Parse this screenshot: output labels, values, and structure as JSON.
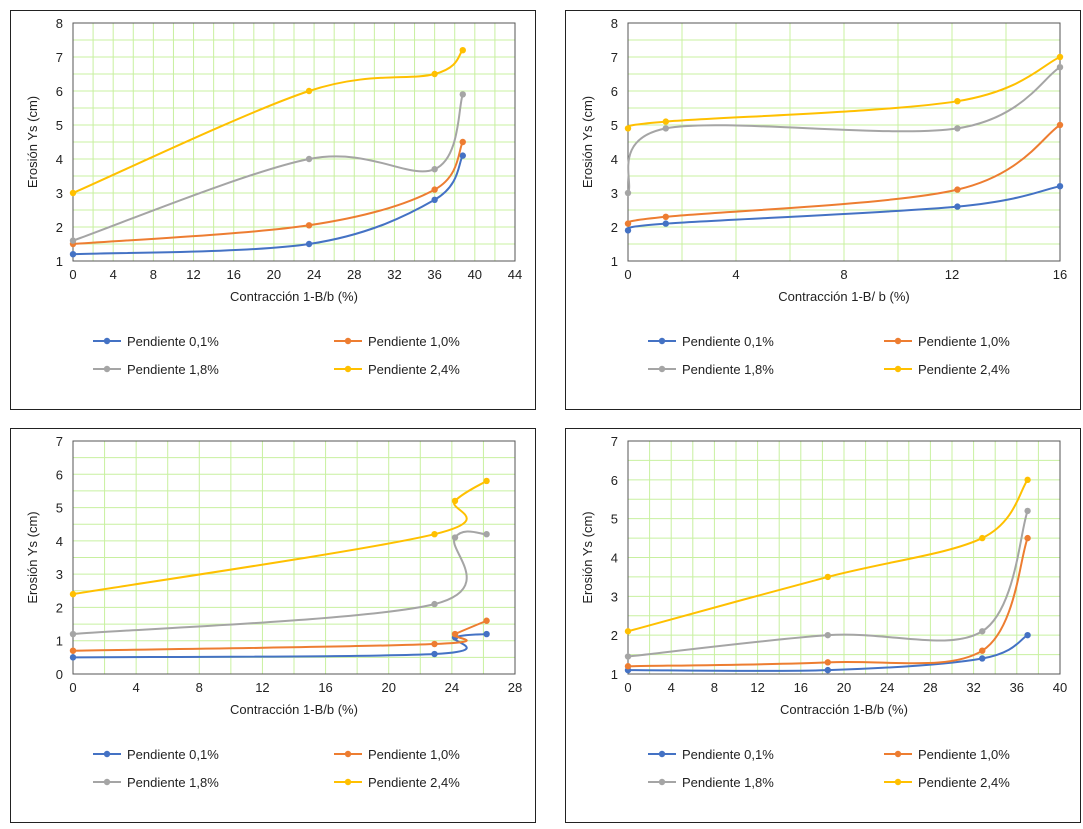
{
  "chart_data": [
    {
      "type": "line",
      "title": "",
      "xlabel": "Contracción 1-B/b (%)",
      "ylabel": "Erosión Ys (cm)",
      "xlim": [
        0,
        44
      ],
      "ylim": [
        1,
        8
      ],
      "xticks": [
        0,
        4,
        8,
        12,
        16,
        20,
        24,
        28,
        32,
        36,
        40,
        44
      ],
      "yticks": [
        1,
        2,
        3,
        4,
        5,
        6,
        7,
        8
      ],
      "grid": true,
      "legend": "bottom",
      "series": [
        {
          "name": "Pendiente 0,1%",
          "color": "#4472C4",
          "x": [
            0,
            23.5,
            36,
            38.8
          ],
          "y": [
            1.2,
            1.5,
            2.8,
            4.1
          ]
        },
        {
          "name": "Pendiente 1,0%",
          "color": "#ED7D31",
          "x": [
            0,
            23.5,
            36,
            38.8
          ],
          "y": [
            1.5,
            2.05,
            3.1,
            4.5
          ]
        },
        {
          "name": "Pendiente 1,8%",
          "color": "#A5A5A5",
          "x": [
            0,
            23.5,
            36,
            38.8
          ],
          "y": [
            1.6,
            4.0,
            3.7,
            5.9
          ]
        },
        {
          "name": "Pendiente 2,4%",
          "color": "#FFC000",
          "x": [
            0,
            23.5,
            36,
            38.8
          ],
          "y": [
            3.0,
            6.0,
            6.5,
            7.2
          ]
        }
      ]
    },
    {
      "type": "line",
      "title": "",
      "xlabel": "Contracción 1-B/ b (%)",
      "ylabel": "Erosión Ys (cm)",
      "xlim": [
        0,
        16
      ],
      "ylim": [
        1,
        8
      ],
      "xticks": [
        0,
        4,
        8,
        12,
        16
      ],
      "yticks": [
        1,
        2,
        3,
        4,
        5,
        6,
        7,
        8
      ],
      "grid": true,
      "legend": "bottom",
      "series": [
        {
          "name": "Pendiente 0,1%",
          "color": "#4472C4",
          "x": [
            0,
            1.4,
            12.2,
            16
          ],
          "y": [
            1.9,
            2.1,
            2.6,
            3.2
          ]
        },
        {
          "name": "Pendiente 1,0%",
          "color": "#ED7D31",
          "x": [
            0,
            1.4,
            12.2,
            16
          ],
          "y": [
            2.1,
            2.3,
            3.1,
            5.0
          ]
        },
        {
          "name": "Pendiente 1,8%",
          "color": "#A5A5A5",
          "x": [
            0,
            1.4,
            12.2,
            16
          ],
          "y": [
            3.0,
            4.9,
            4.9,
            6.7
          ]
        },
        {
          "name": "Pendiente 2,4%",
          "color": "#FFC000",
          "x": [
            0,
            1.4,
            12.2,
            16
          ],
          "y": [
            4.9,
            5.1,
            5.7,
            7.0
          ]
        }
      ]
    },
    {
      "type": "line",
      "title": "",
      "xlabel": "Contracción 1-B/b (%)",
      "ylabel": "Erosión Ys (cm)",
      "xlim": [
        0,
        28
      ],
      "ylim": [
        0,
        7
      ],
      "xticks": [
        0,
        4,
        8,
        12,
        16,
        20,
        24,
        28
      ],
      "yticks": [
        0,
        1,
        2,
        3,
        4,
        5,
        6,
        7
      ],
      "grid": true,
      "legend": "bottom",
      "series": [
        {
          "name": "Pendiente 0,1%",
          "color": "#4472C4",
          "x": [
            0,
            22.9,
            24.2,
            26.2
          ],
          "y": [
            0.5,
            0.6,
            1.1,
            1.2
          ]
        },
        {
          "name": "Pendiente 1,0%",
          "color": "#ED7D31",
          "x": [
            0,
            22.9,
            24.2,
            26.2
          ],
          "y": [
            0.7,
            0.9,
            1.2,
            1.6
          ]
        },
        {
          "name": "Pendiente 1,8%",
          "color": "#A5A5A5",
          "x": [
            0,
            22.9,
            24.2,
            26.2
          ],
          "y": [
            1.2,
            2.1,
            4.1,
            4.2
          ]
        },
        {
          "name": "Pendiente 2,4%",
          "color": "#FFC000",
          "x": [
            0,
            22.9,
            24.2,
            26.2
          ],
          "y": [
            2.4,
            4.2,
            5.2,
            5.8
          ]
        }
      ]
    },
    {
      "type": "line",
      "title": "",
      "xlabel": "Contracción 1-B/b (%)",
      "ylabel": "Erosión Ys (cm)",
      "xlim": [
        0,
        40
      ],
      "ylim": [
        1,
        7
      ],
      "xticks": [
        0,
        4,
        8,
        12,
        16,
        20,
        24,
        28,
        32,
        36,
        40
      ],
      "yticks": [
        1,
        2,
        3,
        4,
        5,
        6,
        7
      ],
      "grid": true,
      "legend": "bottom",
      "series": [
        {
          "name": "Pendiente 0,1%",
          "color": "#4472C4",
          "x": [
            0,
            18.5,
            32.8,
            37
          ],
          "y": [
            1.1,
            1.1,
            1.4,
            2.0
          ]
        },
        {
          "name": "Pendiente 1,0%",
          "color": "#ED7D31",
          "x": [
            0,
            18.5,
            32.8,
            37
          ],
          "y": [
            1.2,
            1.3,
            1.6,
            4.5
          ]
        },
        {
          "name": "Pendiente 1,8%",
          "color": "#A5A5A5",
          "x": [
            0,
            18.5,
            32.8,
            37
          ],
          "y": [
            1.45,
            2.0,
            2.1,
            5.2
          ]
        },
        {
          "name": "Pendiente 2,4%",
          "color": "#FFC000",
          "x": [
            0,
            18.5,
            32.8,
            37
          ],
          "y": [
            2.1,
            3.5,
            4.5,
            6.0
          ]
        }
      ]
    }
  ]
}
